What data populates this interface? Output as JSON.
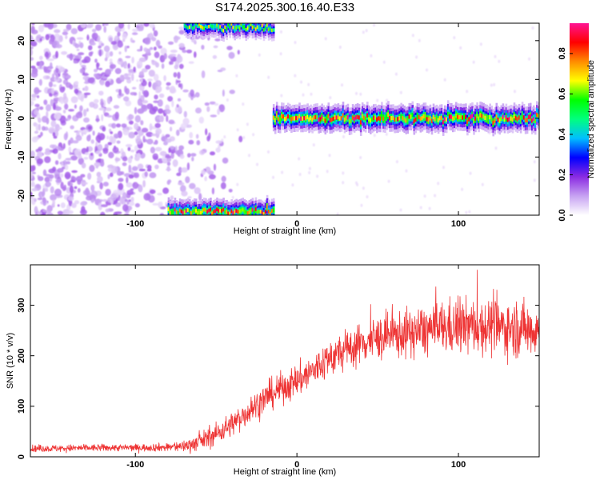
{
  "figure": {
    "title": "S174.2025.300.16.40.E33"
  },
  "chart_data": [
    {
      "type": "heatmap",
      "xlabel": "Height of straight line (km)",
      "ylabel": "Frequency (Hz)",
      "xlim": [
        -165,
        150
      ],
      "ylim": [
        -25,
        24.5
      ],
      "xticks": [
        -100,
        0,
        100
      ],
      "yticks": [
        -20,
        -10,
        0,
        10,
        20
      ],
      "colorbar": {
        "label": "Normalized spectral amplitude",
        "range": [
          0.0,
          0.95
        ],
        "ticks": [
          0.0,
          0.2,
          0.4,
          0.6,
          0.8
        ],
        "colors": [
          "#ffffff",
          "#c7a2f2",
          "#8a2be2",
          "#0000ff",
          "#00bfff",
          "#00ff7f",
          "#00ff00",
          "#ffff00",
          "#ff8c00",
          "#ff0000",
          "#ff1493"
        ]
      },
      "features": [
        {
          "name": "noise",
          "x_range": [
            -165,
            -50
          ],
          "y_range": [
            -25,
            24.5
          ],
          "amplitude": 0.12
        },
        {
          "name": "carrier",
          "x_range": [
            -15,
            150
          ],
          "y_center": 0,
          "amplitude": 0.8
        },
        {
          "name": "aliased segment low",
          "x_range": [
            -80,
            -15
          ],
          "y_center": -24,
          "amplitude": 0.8
        },
        {
          "name": "aliased segment high",
          "x_range": [
            -70,
            -15
          ],
          "y_center": 23.5,
          "amplitude": 0.6
        }
      ],
      "grid": false
    },
    {
      "type": "line",
      "xlabel": "Height of straight line (km)",
      "ylabel": "SNR (10 * v/v)",
      "xlim": [
        -165,
        150
      ],
      "ylim": [
        0,
        380
      ],
      "xticks": [
        -100,
        0,
        100
      ],
      "yticks": [
        0,
        100,
        200,
        300
      ],
      "color": "#ee3333",
      "x": [
        -165,
        -140,
        -120,
        -100,
        -80,
        -70,
        -60,
        -50,
        -40,
        -30,
        -20,
        -10,
        0,
        10,
        20,
        30,
        40,
        50,
        60,
        70,
        80,
        90,
        100,
        110,
        120,
        130,
        140,
        150
      ],
      "y": [
        16,
        17,
        18,
        18,
        19,
        21,
        30,
        45,
        65,
        90,
        115,
        135,
        150,
        170,
        195,
        210,
        225,
        235,
        240,
        245,
        250,
        255,
        258,
        258,
        258,
        256,
        254,
        252
      ],
      "noise_amplitude": [
        6,
        6,
        6,
        6,
        7,
        10,
        15,
        18,
        20,
        22,
        25,
        25,
        28,
        30,
        32,
        32,
        34,
        36,
        38,
        40,
        42,
        44,
        46,
        46,
        46,
        46,
        46,
        46
      ],
      "grid": false
    }
  ]
}
